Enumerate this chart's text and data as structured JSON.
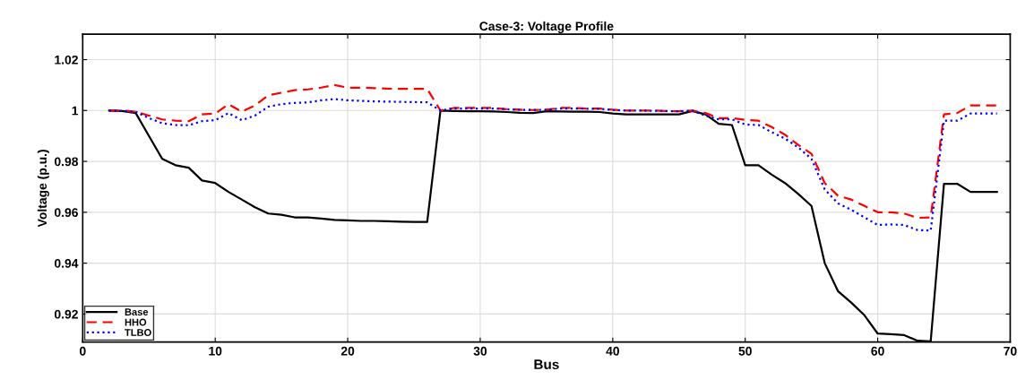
{
  "chart_data": {
    "type": "line",
    "title": "Case-3: Voltage Profile",
    "xlabel": "Bus",
    "ylabel": "Voltage (p.u.)",
    "x": [
      2,
      3,
      4,
      5,
      6,
      7,
      8,
      9,
      10,
      11,
      12,
      13,
      14,
      15,
      16,
      17,
      18,
      19,
      20,
      21,
      22,
      23,
      24,
      25,
      26,
      27,
      28,
      29,
      30,
      31,
      32,
      33,
      34,
      35,
      36,
      37,
      38,
      39,
      40,
      41,
      42,
      43,
      44,
      45,
      46,
      47,
      48,
      49,
      50,
      51,
      52,
      53,
      54,
      55,
      56,
      57,
      58,
      59,
      60,
      61,
      62,
      63,
      64,
      65,
      66,
      67,
      68,
      69
    ],
    "series": [
      {
        "name": "Base",
        "color": "#000000",
        "line_style": "solid",
        "values": [
          1.0,
          0.9998,
          0.999,
          0.99,
          0.981,
          0.9785,
          0.9775,
          0.9725,
          0.9715,
          0.968,
          0.965,
          0.962,
          0.9595,
          0.959,
          0.958,
          0.958,
          0.9575,
          0.957,
          0.9568,
          0.9566,
          0.9566,
          0.9565,
          0.9563,
          0.9562,
          0.9562,
          1.0,
          0.9998,
          0.9997,
          0.9997,
          0.9996,
          0.9994,
          0.9991,
          0.999,
          0.9997,
          0.9996,
          0.9995,
          0.9995,
          0.9994,
          0.9988,
          0.9985,
          0.9985,
          0.9985,
          0.9985,
          0.9985,
          0.9998,
          0.9985,
          0.9948,
          0.9943,
          0.9785,
          0.9785,
          0.9748,
          0.9715,
          0.9672,
          0.9625,
          0.94,
          0.929,
          0.9245,
          0.9195,
          0.9123,
          0.9121,
          0.9117,
          0.9095,
          0.9093,
          0.9712,
          0.9712,
          0.968,
          0.968,
          0.968
        ]
      },
      {
        "name": "HHO",
        "color": "#ff0000",
        "line_style": "dashed",
        "values": [
          1.0,
          1.0,
          0.9995,
          0.998,
          0.9965,
          0.996,
          0.9958,
          0.9985,
          0.9988,
          1.0025,
          0.9995,
          1.002,
          1.006,
          1.007,
          1.008,
          1.0083,
          1.009,
          1.01,
          1.009,
          1.009,
          1.0088,
          1.0086,
          1.0085,
          1.0085,
          1.0085,
          1.0,
          1.001,
          1.001,
          1.001,
          1.001,
          1.0005,
          1.0003,
          1.0002,
          1.0003,
          1.001,
          1.001,
          1.0008,
          1.0008,
          1.0003,
          1.0,
          1.0,
          1.0,
          0.9998,
          0.9997,
          1.0,
          0.999,
          0.997,
          0.997,
          0.9963,
          0.996,
          0.9935,
          0.9905,
          0.9865,
          0.983,
          0.9715,
          0.9665,
          0.965,
          0.9625,
          0.96,
          0.96,
          0.9595,
          0.9578,
          0.958,
          0.9985,
          0.999,
          1.002,
          1.002,
          1.002
        ]
      },
      {
        "name": "TLBO",
        "color": "#0000ff",
        "line_style": "dotted",
        "values": [
          1.0,
          0.9998,
          0.9995,
          0.997,
          0.995,
          0.9943,
          0.9942,
          0.9958,
          0.9962,
          0.999,
          0.9962,
          0.998,
          1.0015,
          1.0025,
          1.003,
          1.0032,
          1.004,
          1.0045,
          1.004,
          1.0038,
          1.0036,
          1.0035,
          1.0034,
          1.0033,
          1.0032,
          1.0,
          1.0008,
          1.0008,
          1.0008,
          1.0008,
          1.0005,
          1.0003,
          1.0002,
          1.0003,
          1.0008,
          1.0008,
          1.0007,
          1.0007,
          1.0002,
          1.0,
          1.0,
          0.9999,
          0.9998,
          0.9997,
          1.0,
          0.998,
          0.9965,
          0.9965,
          0.9945,
          0.9943,
          0.9915,
          0.989,
          0.9855,
          0.981,
          0.969,
          0.9635,
          0.961,
          0.958,
          0.955,
          0.9552,
          0.955,
          0.953,
          0.9528,
          0.996,
          0.996,
          0.9988,
          0.9988,
          0.9988
        ]
      }
    ],
    "xlim": [
      0,
      70
    ],
    "xticks": [
      0,
      10,
      20,
      30,
      40,
      50,
      60,
      70
    ],
    "ylim": [
      0.909,
      1.03
    ],
    "yticks": [
      0.92,
      0.94,
      0.96,
      0.98,
      {
        "value": 1.0,
        "label": "1"
      },
      1.02
    ],
    "grid": true,
    "legend": "bottom left",
    "marker": "none"
  }
}
